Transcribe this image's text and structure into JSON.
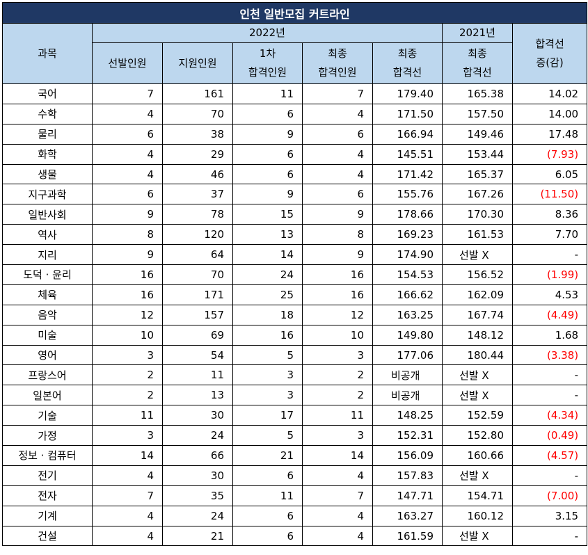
{
  "title": "인천 일반모집 커트라인",
  "headers": {
    "subject": "과목",
    "year_2022": "2022년",
    "year_2021": "2021년",
    "change_line1": "합격선",
    "change_line2": "증(감)",
    "quota": "선발인원",
    "applicants": "지원인원",
    "first_line1": "1차",
    "first_line2": "합격인원",
    "final_count_line1": "최종",
    "final_count_line2": "합격인원",
    "final_cut_line1": "최종",
    "final_cut_line2": "합격선",
    "final_cut_2021_line1": "최종",
    "final_cut_2021_line2": "합격선"
  },
  "rows": [
    {
      "subject": "국어",
      "quota": "7",
      "applicants": "161",
      "first": "11",
      "final": "7",
      "cut2022": "179.40",
      "cut2021": "165.38",
      "change": "14.02",
      "neg": false
    },
    {
      "subject": "수학",
      "quota": "4",
      "applicants": "70",
      "first": "6",
      "final": "4",
      "cut2022": "171.50",
      "cut2021": "157.50",
      "change": "14.00",
      "neg": false
    },
    {
      "subject": "물리",
      "quota": "6",
      "applicants": "38",
      "first": "9",
      "final": "6",
      "cut2022": "166.94",
      "cut2021": "149.46",
      "change": "17.48",
      "neg": false
    },
    {
      "subject": "화학",
      "quota": "4",
      "applicants": "29",
      "first": "6",
      "final": "4",
      "cut2022": "145.51",
      "cut2021": "153.44",
      "change": "(7.93)",
      "neg": true
    },
    {
      "subject": "생물",
      "quota": "4",
      "applicants": "46",
      "first": "6",
      "final": "4",
      "cut2022": "171.42",
      "cut2021": "165.37",
      "change": "6.05",
      "neg": false
    },
    {
      "subject": "지구과학",
      "quota": "6",
      "applicants": "37",
      "first": "9",
      "final": "6",
      "cut2022": "155.76",
      "cut2021": "167.26",
      "change": "(11.50)",
      "neg": true
    },
    {
      "subject": "일반사회",
      "quota": "9",
      "applicants": "78",
      "first": "15",
      "final": "9",
      "cut2022": "178.66",
      "cut2021": "170.30",
      "change": "8.36",
      "neg": false
    },
    {
      "subject": "역사",
      "quota": "8",
      "applicants": "120",
      "first": "13",
      "final": "8",
      "cut2022": "169.23",
      "cut2021": "161.53",
      "change": "7.70",
      "neg": false
    },
    {
      "subject": "지리",
      "quota": "9",
      "applicants": "64",
      "first": "14",
      "final": "9",
      "cut2022": "174.90",
      "cut2021": "선발 X",
      "change": "-",
      "neg": false
    },
    {
      "subject": "도덕 · 윤리",
      "quota": "16",
      "applicants": "70",
      "first": "24",
      "final": "16",
      "cut2022": "154.53",
      "cut2021": "156.52",
      "change": "(1.99)",
      "neg": true
    },
    {
      "subject": "체육",
      "quota": "16",
      "applicants": "171",
      "first": "25",
      "final": "16",
      "cut2022": "166.62",
      "cut2021": "162.09",
      "change": "4.53",
      "neg": false
    },
    {
      "subject": "음악",
      "quota": "12",
      "applicants": "157",
      "first": "18",
      "final": "12",
      "cut2022": "163.25",
      "cut2021": "167.74",
      "change": "(4.49)",
      "neg": true
    },
    {
      "subject": "미술",
      "quota": "10",
      "applicants": "69",
      "first": "16",
      "final": "10",
      "cut2022": "149.80",
      "cut2021": "148.12",
      "change": "1.68",
      "neg": false
    },
    {
      "subject": "영어",
      "quota": "3",
      "applicants": "54",
      "first": "5",
      "final": "3",
      "cut2022": "177.06",
      "cut2021": "180.44",
      "change": "(3.38)",
      "neg": true
    },
    {
      "subject": "프랑스어",
      "quota": "2",
      "applicants": "11",
      "first": "3",
      "final": "2",
      "cut2022": "비공개",
      "cut2021": "선발 X",
      "change": "-",
      "neg": false
    },
    {
      "subject": "일본어",
      "quota": "2",
      "applicants": "13",
      "first": "3",
      "final": "2",
      "cut2022": "비공개",
      "cut2021": "선발 X",
      "change": "-",
      "neg": false
    },
    {
      "subject": "기술",
      "quota": "11",
      "applicants": "30",
      "first": "17",
      "final": "11",
      "cut2022": "148.25",
      "cut2021": "152.59",
      "change": "(4.34)",
      "neg": true
    },
    {
      "subject": "가정",
      "quota": "3",
      "applicants": "24",
      "first": "5",
      "final": "3",
      "cut2022": "152.31",
      "cut2021": "152.80",
      "change": "(0.49)",
      "neg": true
    },
    {
      "subject": "정보 · 컴퓨터",
      "quota": "14",
      "applicants": "66",
      "first": "21",
      "final": "14",
      "cut2022": "156.09",
      "cut2021": "160.66",
      "change": "(4.57)",
      "neg": true
    },
    {
      "subject": "전기",
      "quota": "4",
      "applicants": "30",
      "first": "6",
      "final": "4",
      "cut2022": "157.83",
      "cut2021": "선발 X",
      "change": "-",
      "neg": false
    },
    {
      "subject": "전자",
      "quota": "7",
      "applicants": "35",
      "first": "11",
      "final": "7",
      "cut2022": "147.71",
      "cut2021": "154.71",
      "change": "(7.00)",
      "neg": true
    },
    {
      "subject": "기계",
      "quota": "4",
      "applicants": "24",
      "first": "6",
      "final": "4",
      "cut2022": "163.27",
      "cut2021": "160.12",
      "change": "3.15",
      "neg": false
    },
    {
      "subject": "건설",
      "quota": "4",
      "applicants": "21",
      "first": "6",
      "final": "4",
      "cut2022": "161.59",
      "cut2021": "선발 X",
      "change": "-",
      "neg": false
    }
  ],
  "colors": {
    "title_bg": "#1f3864",
    "header_bg": "#bdd7ee",
    "negative": "#ff0000"
  }
}
